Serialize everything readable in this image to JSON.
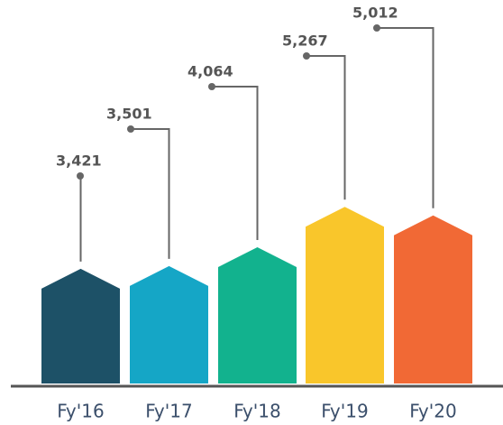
{
  "chart_data": {
    "type": "bar",
    "categories": [
      "Fy'16",
      "Fy'17",
      "Fy'18",
      "Fy'19",
      "Fy'20"
    ],
    "values": [
      3421,
      3501,
      4064,
      5267,
      5012
    ],
    "value_labels": [
      "3,421",
      "3,501",
      "4,064",
      "5,267",
      "5,012"
    ],
    "colors": [
      "#1d5167",
      "#15a6c6",
      "#12b28e",
      "#f9c62b",
      "#f16935"
    ],
    "ylim": [
      0,
      6000
    ]
  }
}
